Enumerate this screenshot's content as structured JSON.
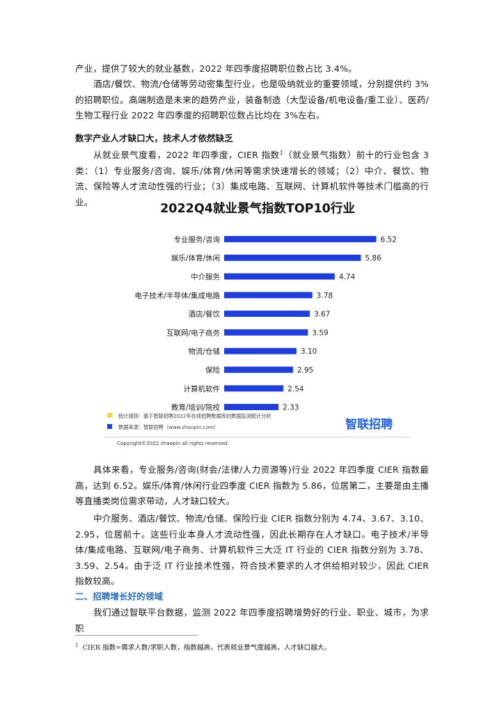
{
  "paragraphs": {
    "p1_line1": "产业，提供了较大的就业基数，2022 年四季度招聘职位数占比 3.4%。",
    "p2": "酒店/餐饮、物流/仓储等劳动密集型行业，也是吸纳就业的重要领域，分别提供约 3%的招聘职位。高端制造是未来的趋势产业，装备制造（大型设备/机电设备/重工业）、医药/生物工程行业 2022 年四季度的招聘职位数占比均在 3%左右。",
    "heading1": "数字产业人才缺口大，技术人才依然缺乏",
    "p3_a": "从就业景气度看，2022 年四季度，CIER 指数",
    "p3_sup": "1",
    "p3_b": "（就业景气指数）前十的行业包含 3 类：（1）专业服务/咨询、娱乐/体育/休闲等需求快速增长的领域；（2）中介、餐饮、物流、保险等人才流动性强的行业；（3）集成电路、互联网、计算机软件等技术门槛高的行业。",
    "p4": "具体来看，专业服务/咨询(财会/法律/人力资源等)行业 2022 年四季度 CIER 指数最高，达到 6.52。娱乐/体育/休闲行业四季度 CIER 指数为 5.86，位居第二，主要是由主播等直播类岗位需求带动，人才缺口较大。",
    "p5": "中介服务、酒店/餐饮、物流/仓储、保险行业 CIER 指数分别为 4.74、3.67、3.10、2.95，位居前十。这些行业本身人才流动性强，因此长期存在人才缺口。电子技术/半导体/集成电路、互联网/电子商务、计算机软件三大泛 IT 行业的 CIER 指数分别为 3.78、3.59、2.54。由于泛 IT 行业技术性强，符合技术要求的人才供给相对较少，因此 CIER 指数较高。",
    "heading2": "二、招聘增长好的领域",
    "p6": "我们通过智联平台数据，监测 2022 年四季度招聘增势好的行业、职业、城市，为求职"
  },
  "footnote": {
    "mark": "1",
    "text": "CIER 指数=需求人数/求职人数，指数越高，代表就业景气度越高，人才缺口越大。"
  },
  "chart_data": {
    "type": "bar",
    "orientation": "horizontal",
    "title": "2022Q4就业景气指数TOP10行业",
    "categories": [
      "专业服务/咨询",
      "娱乐/体育/休闲",
      "中介服务",
      "电子技术/半导体/集成电路",
      "酒店/餐饮",
      "互联网/电子商务",
      "物流/仓储",
      "保险",
      "计算机软件",
      "教育/培训/院校"
    ],
    "values": [
      6.52,
      5.86,
      4.74,
      3.78,
      3.67,
      3.59,
      3.1,
      2.95,
      2.54,
      2.33
    ],
    "value_labels": [
      "6.52",
      "5.86",
      "4.74",
      "3.78",
      "3.67",
      "3.59",
      "3.10",
      "2.95",
      "2.54",
      "2.33"
    ],
    "xlim": [
      0,
      7
    ],
    "grid": false,
    "bar_color": "#1f3fd6",
    "legend": [
      {
        "color": "#f5d25a",
        "text": "统计规则：基于智联招聘2022年在线招聘数据库的数据监测统计分析"
      },
      {
        "color": "#1f3fd6",
        "text": "数据来源：智联招聘（www.zhaopin.com）"
      }
    ],
    "logo_text": "智联招聘",
    "copyright": "Copyright©2022 zhaopin all rights reserved"
  }
}
